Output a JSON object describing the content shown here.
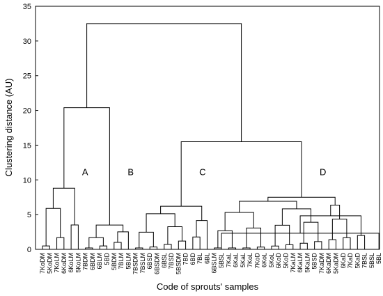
{
  "chart_data": {
    "type": "dendrogram",
    "title": "",
    "xlabel": "Code of sprouts' samples",
    "ylabel": "Clustering distance (AU)",
    "ylim": [
      0,
      35
    ],
    "yticks": [
      0,
      5,
      10,
      15,
      20,
      25,
      30,
      35
    ],
    "grid": false,
    "leaves": [
      "7KoDM",
      "5KoDM",
      "7KoLM",
      "6KoDM",
      "6KoLM",
      "5KoLM",
      "7BDM",
      "6BDM",
      "6BLM",
      "5BD",
      "5BDM",
      "7BLM",
      "5BLM",
      "7BSDM",
      "7BSLM",
      "6BSD",
      "6BSDM",
      "6BSL",
      "7BSD",
      "5BSDM",
      "7BD",
      "6BD",
      "7BL",
      "6BL",
      "6BSLM",
      "5BSL",
      "7KaL",
      "6KaL",
      "5KaL",
      "7KoL",
      "7KoD",
      "6KoL",
      "5KoL",
      "6KoD",
      "5KoD",
      "7KaLM",
      "6KaLM",
      "5KaLM",
      "5BSD",
      "7KaDM",
      "6KaDM",
      "5KaDM",
      "6KaD",
      "7KaD",
      "5KaD",
      "7BSL",
      "5BSL",
      "5BL"
    ],
    "clusters": [
      {
        "label": "A",
        "members": [
          "7KoDM",
          "5KoDM",
          "7KoLM",
          "6KoDM",
          "6KoLM",
          "5KoLM"
        ],
        "height": 8.8
      },
      {
        "label": "B",
        "members": [
          "7BDM",
          "6BDM",
          "6BLM",
          "5BD",
          "5BDM",
          "7BLM",
          "5BLM"
        ],
        "height": 3.5
      },
      {
        "label": "C",
        "members": [
          "7BSDM",
          "7BSLM",
          "6BSD",
          "6BSDM",
          "6BSL",
          "7BSD",
          "5BSDM",
          "7BD",
          "6BD",
          "7BL",
          "6BL"
        ],
        "height": 6.2
      },
      {
        "label": "D",
        "members": [
          "6BSLM",
          "5BSL",
          "7KaL",
          "6KaL",
          "5KaL",
          "7KoL",
          "7KoD",
          "6KoL",
          "5KoL",
          "6KoD",
          "5KoD",
          "7KaLM",
          "6KaLM",
          "5KaLM",
          "5BSD",
          "7KaDM",
          "6KaDM",
          "5KaDM",
          "6KaD",
          "7KaD",
          "5KaD",
          "7BSL",
          "5BSL",
          "5BL"
        ],
        "height": 7.5
      }
    ],
    "merges": [
      {
        "groups": [
          "A",
          "B"
        ],
        "height": 20.4
      },
      {
        "groups": [
          "C",
          "D"
        ],
        "height": 15.5
      },
      {
        "groups": [
          "A+B",
          "C+D"
        ],
        "height": 32.5
      }
    ]
  }
}
